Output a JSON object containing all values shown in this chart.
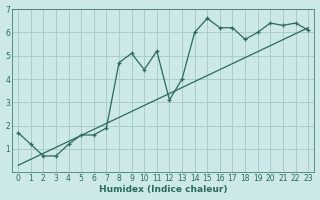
{
  "xlabel": "Humidex (Indice chaleur)",
  "ylabel": "",
  "bg_color": "#cce8e8",
  "grid_color": "#aacccc",
  "line_color": "#2a6b5a",
  "xlim": [
    -0.5,
    23.5
  ],
  "ylim": [
    0,
    7
  ],
  "xticks": [
    0,
    1,
    2,
    3,
    4,
    5,
    6,
    7,
    8,
    9,
    10,
    11,
    12,
    13,
    14,
    15,
    16,
    17,
    18,
    19,
    20,
    21,
    22,
    23
  ],
  "yticks": [
    1,
    2,
    3,
    4,
    5,
    6,
    7
  ],
  "series1_x": [
    0,
    1,
    2,
    3,
    4,
    5,
    6,
    7,
    8,
    9,
    10,
    11,
    12,
    13,
    14,
    15,
    16,
    17,
    18,
    19,
    20,
    21,
    22,
    23
  ],
  "series1_y": [
    1.7,
    1.2,
    0.7,
    0.7,
    1.2,
    1.6,
    1.6,
    1.9,
    4.7,
    5.1,
    4.4,
    5.2,
    3.1,
    4.0,
    6.0,
    6.6,
    6.2,
    6.2,
    5.7,
    6.0,
    6.4,
    6.3,
    6.4,
    6.1
  ],
  "series2_x": [
    0,
    23
  ],
  "series2_y": [
    0.3,
    6.2
  ]
}
